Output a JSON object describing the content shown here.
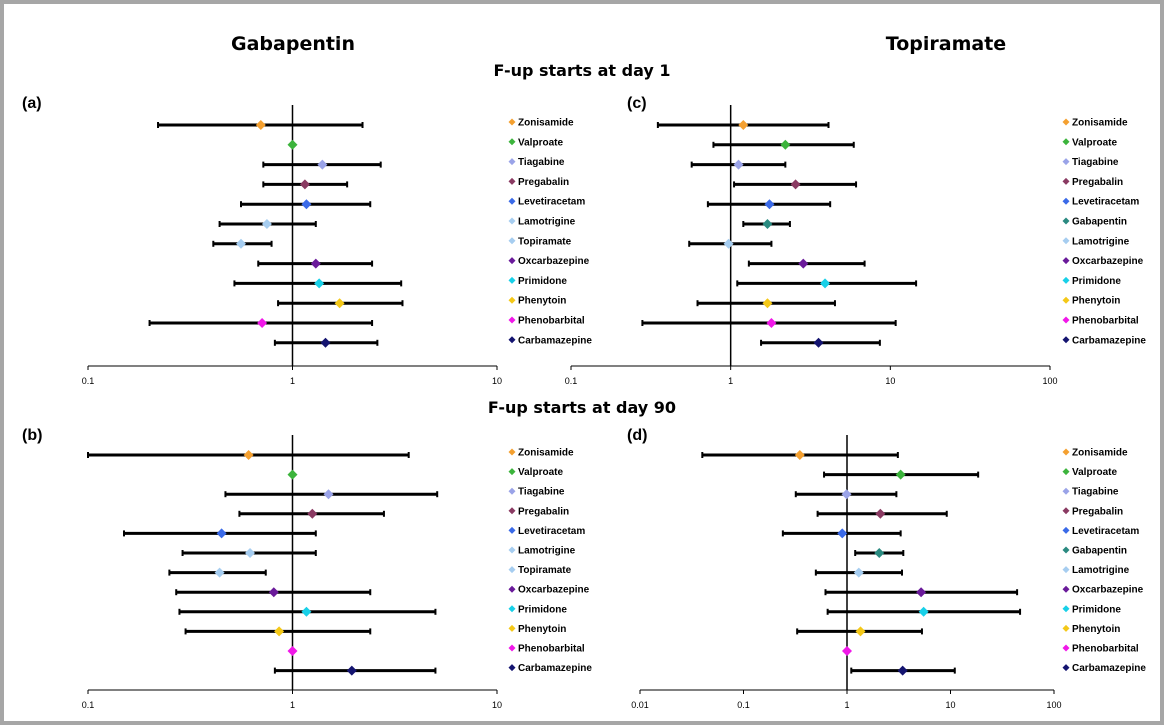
{
  "headers": {
    "left_drug": "Gabapentin",
    "right_drug": "Topiramate",
    "section_top": "F-up starts at day 1",
    "section_bottom": "F-up starts at day 90"
  },
  "colors": {
    "Zonisamide": "#f4a030",
    "Valproate": "#3cb43c",
    "Tiagabine": "#9aa3e8",
    "Pregabalin": "#8a3a62",
    "Levetiracetam": "#3a6ae8",
    "Lamotrigine": "#a6cdf0",
    "Gabapentin": "#2a8a80",
    "Topiramate": "#a6cdf0",
    "Oxcarbazepine": "#6a1a9a",
    "Primidone": "#18d0e8",
    "Phenytoin": "#f4c818",
    "Phenobarbital": "#f018e8",
    "Carbamazepine": "#141470",
    "bar": "#000000",
    "frame": "#a6a6a6"
  },
  "chart_data": [
    {
      "type": "forest",
      "panel_label": "(a)",
      "x_scale": "log",
      "xlim": [
        0.1,
        10
      ],
      "x_ticks": [
        "0.1",
        "1",
        "10"
      ],
      "reference_line": 1,
      "series": [
        {
          "name": "Zonisamide",
          "estimate": 0.7,
          "lower": 0.22,
          "upper": 2.2
        },
        {
          "name": "Valproate",
          "estimate": 1.0
        },
        {
          "name": "Tiagabine",
          "estimate": 1.4,
          "lower": 0.72,
          "upper": 2.7
        },
        {
          "name": "Pregabalin",
          "estimate": 1.15,
          "lower": 0.72,
          "upper": 1.85
        },
        {
          "name": "Levetiracetam",
          "estimate": 1.17,
          "lower": 0.56,
          "upper": 2.4
        },
        {
          "name": "Lamotrigine",
          "estimate": 0.75,
          "lower": 0.44,
          "upper": 1.3
        },
        {
          "name": "Topiramate",
          "estimate": 0.56,
          "lower": 0.41,
          "upper": 0.79
        },
        {
          "name": "Oxcarbazepine",
          "estimate": 1.3,
          "lower": 0.68,
          "upper": 2.45
        },
        {
          "name": "Primidone",
          "estimate": 1.35,
          "lower": 0.52,
          "upper": 3.4
        },
        {
          "name": "Phenytoin",
          "estimate": 1.7,
          "lower": 0.85,
          "upper": 3.45
        },
        {
          "name": "Phenobarbital",
          "estimate": 0.71,
          "lower": 0.2,
          "upper": 2.45
        },
        {
          "name": "Carbamazepine",
          "estimate": 1.45,
          "lower": 0.82,
          "upper": 2.6
        }
      ]
    },
    {
      "type": "forest",
      "panel_label": "(c)",
      "x_scale": "log",
      "xlim": [
        0.1,
        100
      ],
      "x_ticks": [
        "0.1",
        "1",
        "10",
        "100"
      ],
      "reference_line": 1,
      "series": [
        {
          "name": "Zonisamide",
          "estimate": 1.2,
          "lower": 0.35,
          "upper": 4.1
        },
        {
          "name": "Valproate",
          "estimate": 2.2,
          "lower": 0.78,
          "upper": 5.9
        },
        {
          "name": "Tiagabine",
          "estimate": 1.12,
          "lower": 0.57,
          "upper": 2.2
        },
        {
          "name": "Pregabalin",
          "estimate": 2.55,
          "lower": 1.05,
          "upper": 6.1
        },
        {
          "name": "Levetiracetam",
          "estimate": 1.75,
          "lower": 0.72,
          "upper": 4.2
        },
        {
          "name": "Gabapentin",
          "estimate": 1.7,
          "lower": 1.2,
          "upper": 2.35
        },
        {
          "name": "Lamotrigine",
          "estimate": 0.97,
          "lower": 0.55,
          "upper": 1.8
        },
        {
          "name": "Oxcarbazepine",
          "estimate": 2.85,
          "lower": 1.3,
          "upper": 6.9
        },
        {
          "name": "Primidone",
          "estimate": 3.9,
          "lower": 1.1,
          "upper": 14.5
        },
        {
          "name": "Phenytoin",
          "estimate": 1.7,
          "lower": 0.62,
          "upper": 4.5
        },
        {
          "name": "Phenobarbital",
          "estimate": 1.8,
          "lower": 0.28,
          "upper": 10.8
        },
        {
          "name": "Carbamazepine",
          "estimate": 3.55,
          "lower": 1.55,
          "upper": 8.6
        }
      ]
    },
    {
      "type": "forest",
      "panel_label": "(b)",
      "x_scale": "log",
      "xlim": [
        0.1,
        10
      ],
      "x_ticks": [
        "0.1",
        "1",
        "10"
      ],
      "reference_line": 1,
      "series": [
        {
          "name": "Zonisamide",
          "estimate": 0.61,
          "lower": 0.1,
          "upper": 3.7
        },
        {
          "name": "Valproate",
          "estimate": 1.0
        },
        {
          "name": "Tiagabine",
          "estimate": 1.5,
          "lower": 0.47,
          "upper": 5.1
        },
        {
          "name": "Pregabalin",
          "estimate": 1.25,
          "lower": 0.55,
          "upper": 2.8
        },
        {
          "name": "Levetiracetam",
          "estimate": 0.45,
          "lower": 0.15,
          "upper": 1.3
        },
        {
          "name": "Lamotrigine",
          "estimate": 0.62,
          "lower": 0.29,
          "upper": 1.3
        },
        {
          "name": "Topiramate",
          "estimate": 0.44,
          "lower": 0.25,
          "upper": 0.74
        },
        {
          "name": "Oxcarbazepine",
          "estimate": 0.81,
          "lower": 0.27,
          "upper": 2.4
        },
        {
          "name": "Primidone",
          "estimate": 1.17,
          "lower": 0.28,
          "upper": 5.0
        },
        {
          "name": "Phenytoin",
          "estimate": 0.86,
          "lower": 0.3,
          "upper": 2.4
        },
        {
          "name": "Phenobarbital",
          "estimate": 1.0
        },
        {
          "name": "Carbamazepine",
          "estimate": 1.95,
          "lower": 0.82,
          "upper": 5.0
        }
      ]
    },
    {
      "type": "forest",
      "panel_label": "(d)",
      "x_scale": "log",
      "xlim": [
        0.01,
        100
      ],
      "x_ticks": [
        "0.01",
        "0.1",
        "1",
        "10",
        "100"
      ],
      "reference_line": 1,
      "series": [
        {
          "name": "Zonisamide",
          "estimate": 0.35,
          "lower": 0.04,
          "upper": 3.1
        },
        {
          "name": "Valproate",
          "estimate": 3.3,
          "lower": 0.6,
          "upper": 18.5
        },
        {
          "name": "Tiagabine",
          "estimate": 0.99,
          "lower": 0.32,
          "upper": 3.0
        },
        {
          "name": "Pregabalin",
          "estimate": 2.1,
          "lower": 0.52,
          "upper": 9.2
        },
        {
          "name": "Levetiracetam",
          "estimate": 0.9,
          "lower": 0.24,
          "upper": 3.3
        },
        {
          "name": "Gabapentin",
          "estimate": 2.05,
          "lower": 1.2,
          "upper": 3.5
        },
        {
          "name": "Lamotrigine",
          "estimate": 1.3,
          "lower": 0.5,
          "upper": 3.4
        },
        {
          "name": "Oxcarbazepine",
          "estimate": 5.2,
          "lower": 0.62,
          "upper": 44
        },
        {
          "name": "Primidone",
          "estimate": 5.5,
          "lower": 0.65,
          "upper": 47
        },
        {
          "name": "Phenytoin",
          "estimate": 1.35,
          "lower": 0.33,
          "upper": 5.3
        },
        {
          "name": "Phenobarbital",
          "estimate": 1.0
        },
        {
          "name": "Carbamazepine",
          "estimate": 3.45,
          "lower": 1.1,
          "upper": 11
        }
      ]
    }
  ]
}
